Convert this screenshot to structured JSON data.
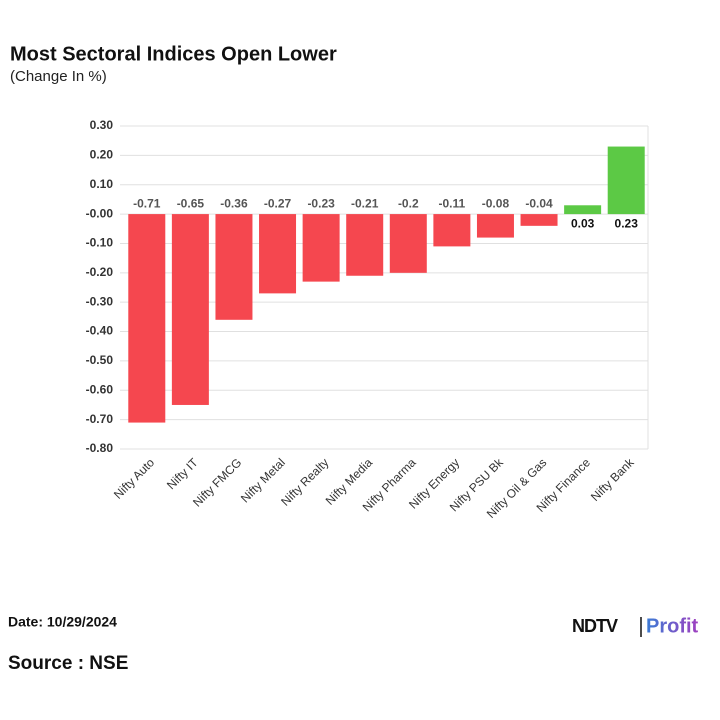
{
  "chart_data": {
    "type": "bar",
    "title": "Most Sectoral Indices Open Lower",
    "subtitle": "(Change In %)",
    "categories": [
      "Nifty Auto",
      "Nifty IT",
      "Nifty FMCG",
      "Nifty Metal",
      "Nifty Realty",
      "Nifty Media",
      "Nifty Pharma",
      "Nifty Energy",
      "Nifty PSU Bk",
      "Nifty Oil & Gas",
      "Nifty Finance",
      "Nifty Bank"
    ],
    "values": [
      -0.71,
      -0.65,
      -0.36,
      -0.27,
      -0.23,
      -0.21,
      -0.2,
      -0.11,
      -0.08,
      -0.04,
      0.03,
      0.23
    ],
    "negative_color": "#f5474f",
    "positive_color": "#5cc945",
    "ylim": [
      -0.8,
      0.3
    ],
    "yticks": [
      {
        "value": 0.3,
        "label": "0.30"
      },
      {
        "value": 0.2,
        "label": "0.20"
      },
      {
        "value": 0.1,
        "label": "0.10"
      },
      {
        "value": 0,
        "label": "-0.00"
      },
      {
        "value": -0.1,
        "label": "-0.10"
      },
      {
        "value": -0.2,
        "label": "-0.20"
      },
      {
        "value": -0.3,
        "label": "-0.30"
      },
      {
        "value": -0.4,
        "label": "-0.40"
      },
      {
        "value": -0.5,
        "label": "-0.50"
      },
      {
        "value": -0.6,
        "label": "-0.60"
      },
      {
        "value": -0.7,
        "label": "-0.70"
      },
      {
        "value": -0.8,
        "label": "-0.80"
      }
    ],
    "grid": true,
    "date": "Date: 10/29/2024",
    "source": "Source : NSE",
    "brand": [
      "NDTV",
      "Profit"
    ]
  }
}
